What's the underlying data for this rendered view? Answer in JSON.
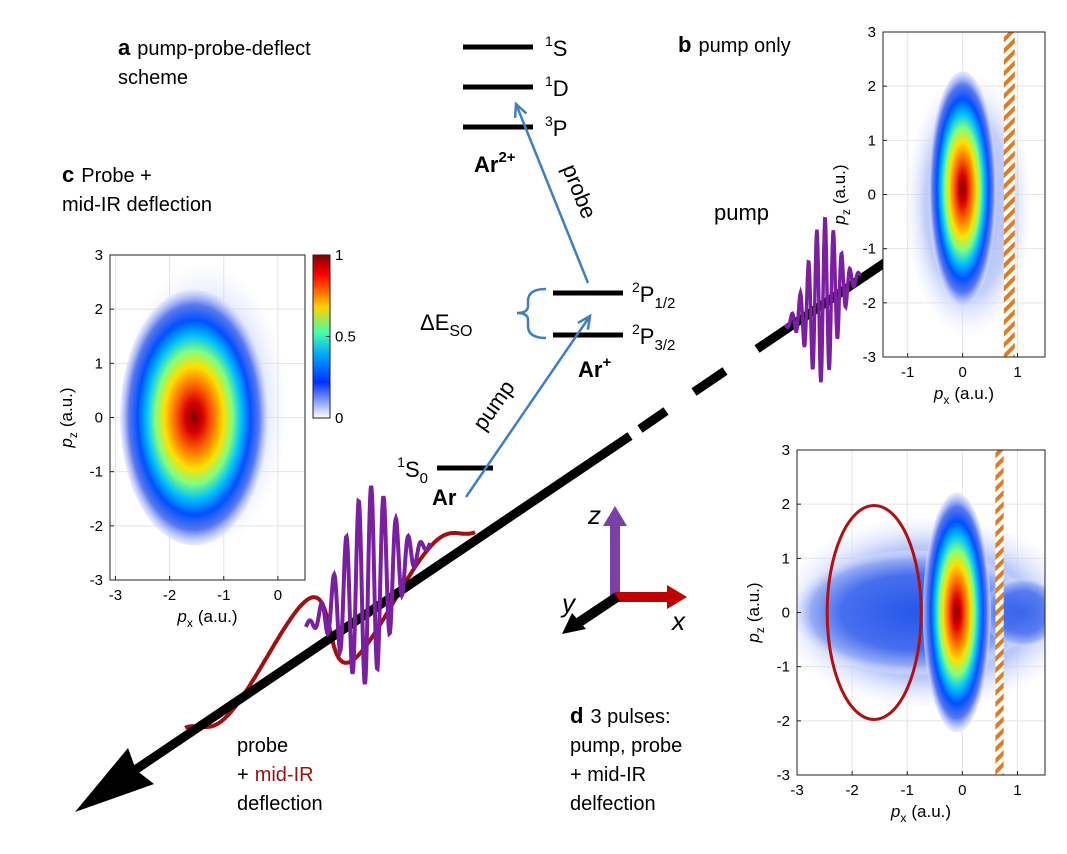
{
  "panel_a": {
    "letter": "a",
    "title": [
      "pump-probe-deflect",
      "scheme"
    ]
  },
  "levels": [
    {
      "sup": "1",
      "term": "S"
    },
    {
      "sup": "1",
      "term": "D"
    },
    {
      "sup": "3",
      "term": "P"
    },
    {
      "sup": "2",
      "term": "P",
      "sub": "1/2"
    },
    {
      "sup": "2",
      "term": "P",
      "sub": "3/2"
    },
    {
      "sup": "1",
      "term": "S",
      "sub": "0"
    }
  ],
  "species": [
    {
      "base": "Ar",
      "charge": "2+"
    },
    {
      "base": "Ar",
      "charge": "+"
    },
    {
      "base": "Ar"
    }
  ],
  "splitting": {
    "symbol": "ΔE",
    "sub": "SO"
  },
  "transitions": [
    "pump",
    "probe"
  ],
  "axes_triad": [
    "z",
    "x",
    "y"
  ],
  "beam_labels": [
    "probe",
    "+",
    "mid-IR",
    "deflection"
  ],
  "panel_b": {
    "letter": "b",
    "title": [
      "pump only"
    ],
    "pulse_label": "pump",
    "xlabel": {
      "var": "p",
      "sub": "x",
      "unit": "(a.u.)"
    },
    "ylabel": {
      "var": "p",
      "sub": "z",
      "unit": "(a.u.)"
    },
    "xlim": [
      -1.45,
      1.5
    ],
    "ylim": [
      -3,
      3
    ],
    "xticks": [
      -1,
      0,
      1
    ],
    "yticks": [
      -3,
      -2,
      -1,
      0,
      1,
      2,
      3
    ]
  },
  "panel_c": {
    "letter": "c",
    "title": [
      "Probe +",
      "mid-IR deflection"
    ],
    "xlabel": {
      "var": "p",
      "sub": "x",
      "unit": "(a.u.)"
    },
    "ylabel": {
      "var": "p",
      "sub": "z",
      "unit": "(a.u.)"
    },
    "xlim": [
      -3.1,
      0.5
    ],
    "ylim": [
      -3,
      3
    ],
    "xticks": [
      -3,
      -2,
      -1,
      0
    ],
    "yticks": [
      -3,
      -2,
      -1,
      0,
      1,
      2,
      3
    ],
    "colorbar": {
      "lim": [
        0,
        1
      ],
      "ticks": [
        0,
        0.5,
        1
      ]
    }
  },
  "panel_d": {
    "letter": "d",
    "title": [
      "3 pulses:",
      "pump, probe",
      "+ mid-IR",
      "delfection"
    ],
    "xlabel": {
      "var": "p",
      "sub": "x",
      "unit": "(a.u.)"
    },
    "ylabel": {
      "var": "p",
      "sub": "z",
      "unit": "(a.u.)"
    },
    "xlim": [
      -3,
      1.5
    ],
    "ylim": [
      -3,
      3
    ],
    "xticks": [
      -3,
      -2,
      -1,
      0,
      1
    ],
    "yticks": [
      -3,
      -2,
      -1,
      0,
      1,
      2,
      3
    ]
  }
}
